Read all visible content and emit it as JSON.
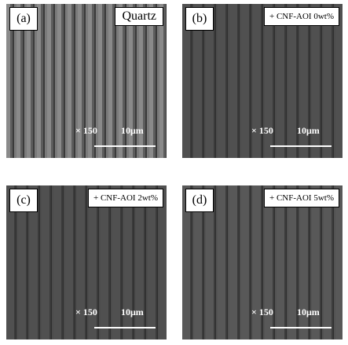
{
  "panels": [
    {
      "label": "(a)",
      "tag": "Quartz",
      "magnification": "× 150",
      "scale": "10μm"
    },
    {
      "label": "(b)",
      "tag": "+ CNF-AOI 0wt%",
      "magnification": "× 150",
      "scale": "10μm"
    },
    {
      "label": "(c)",
      "tag": "+ CNF-AOI 2wt%",
      "magnification": "× 150",
      "scale": "10μm"
    },
    {
      "label": "(d)",
      "tag": "+ CNF-AOI 5wt%",
      "magnification": "× 150",
      "scale": "10μm"
    }
  ]
}
